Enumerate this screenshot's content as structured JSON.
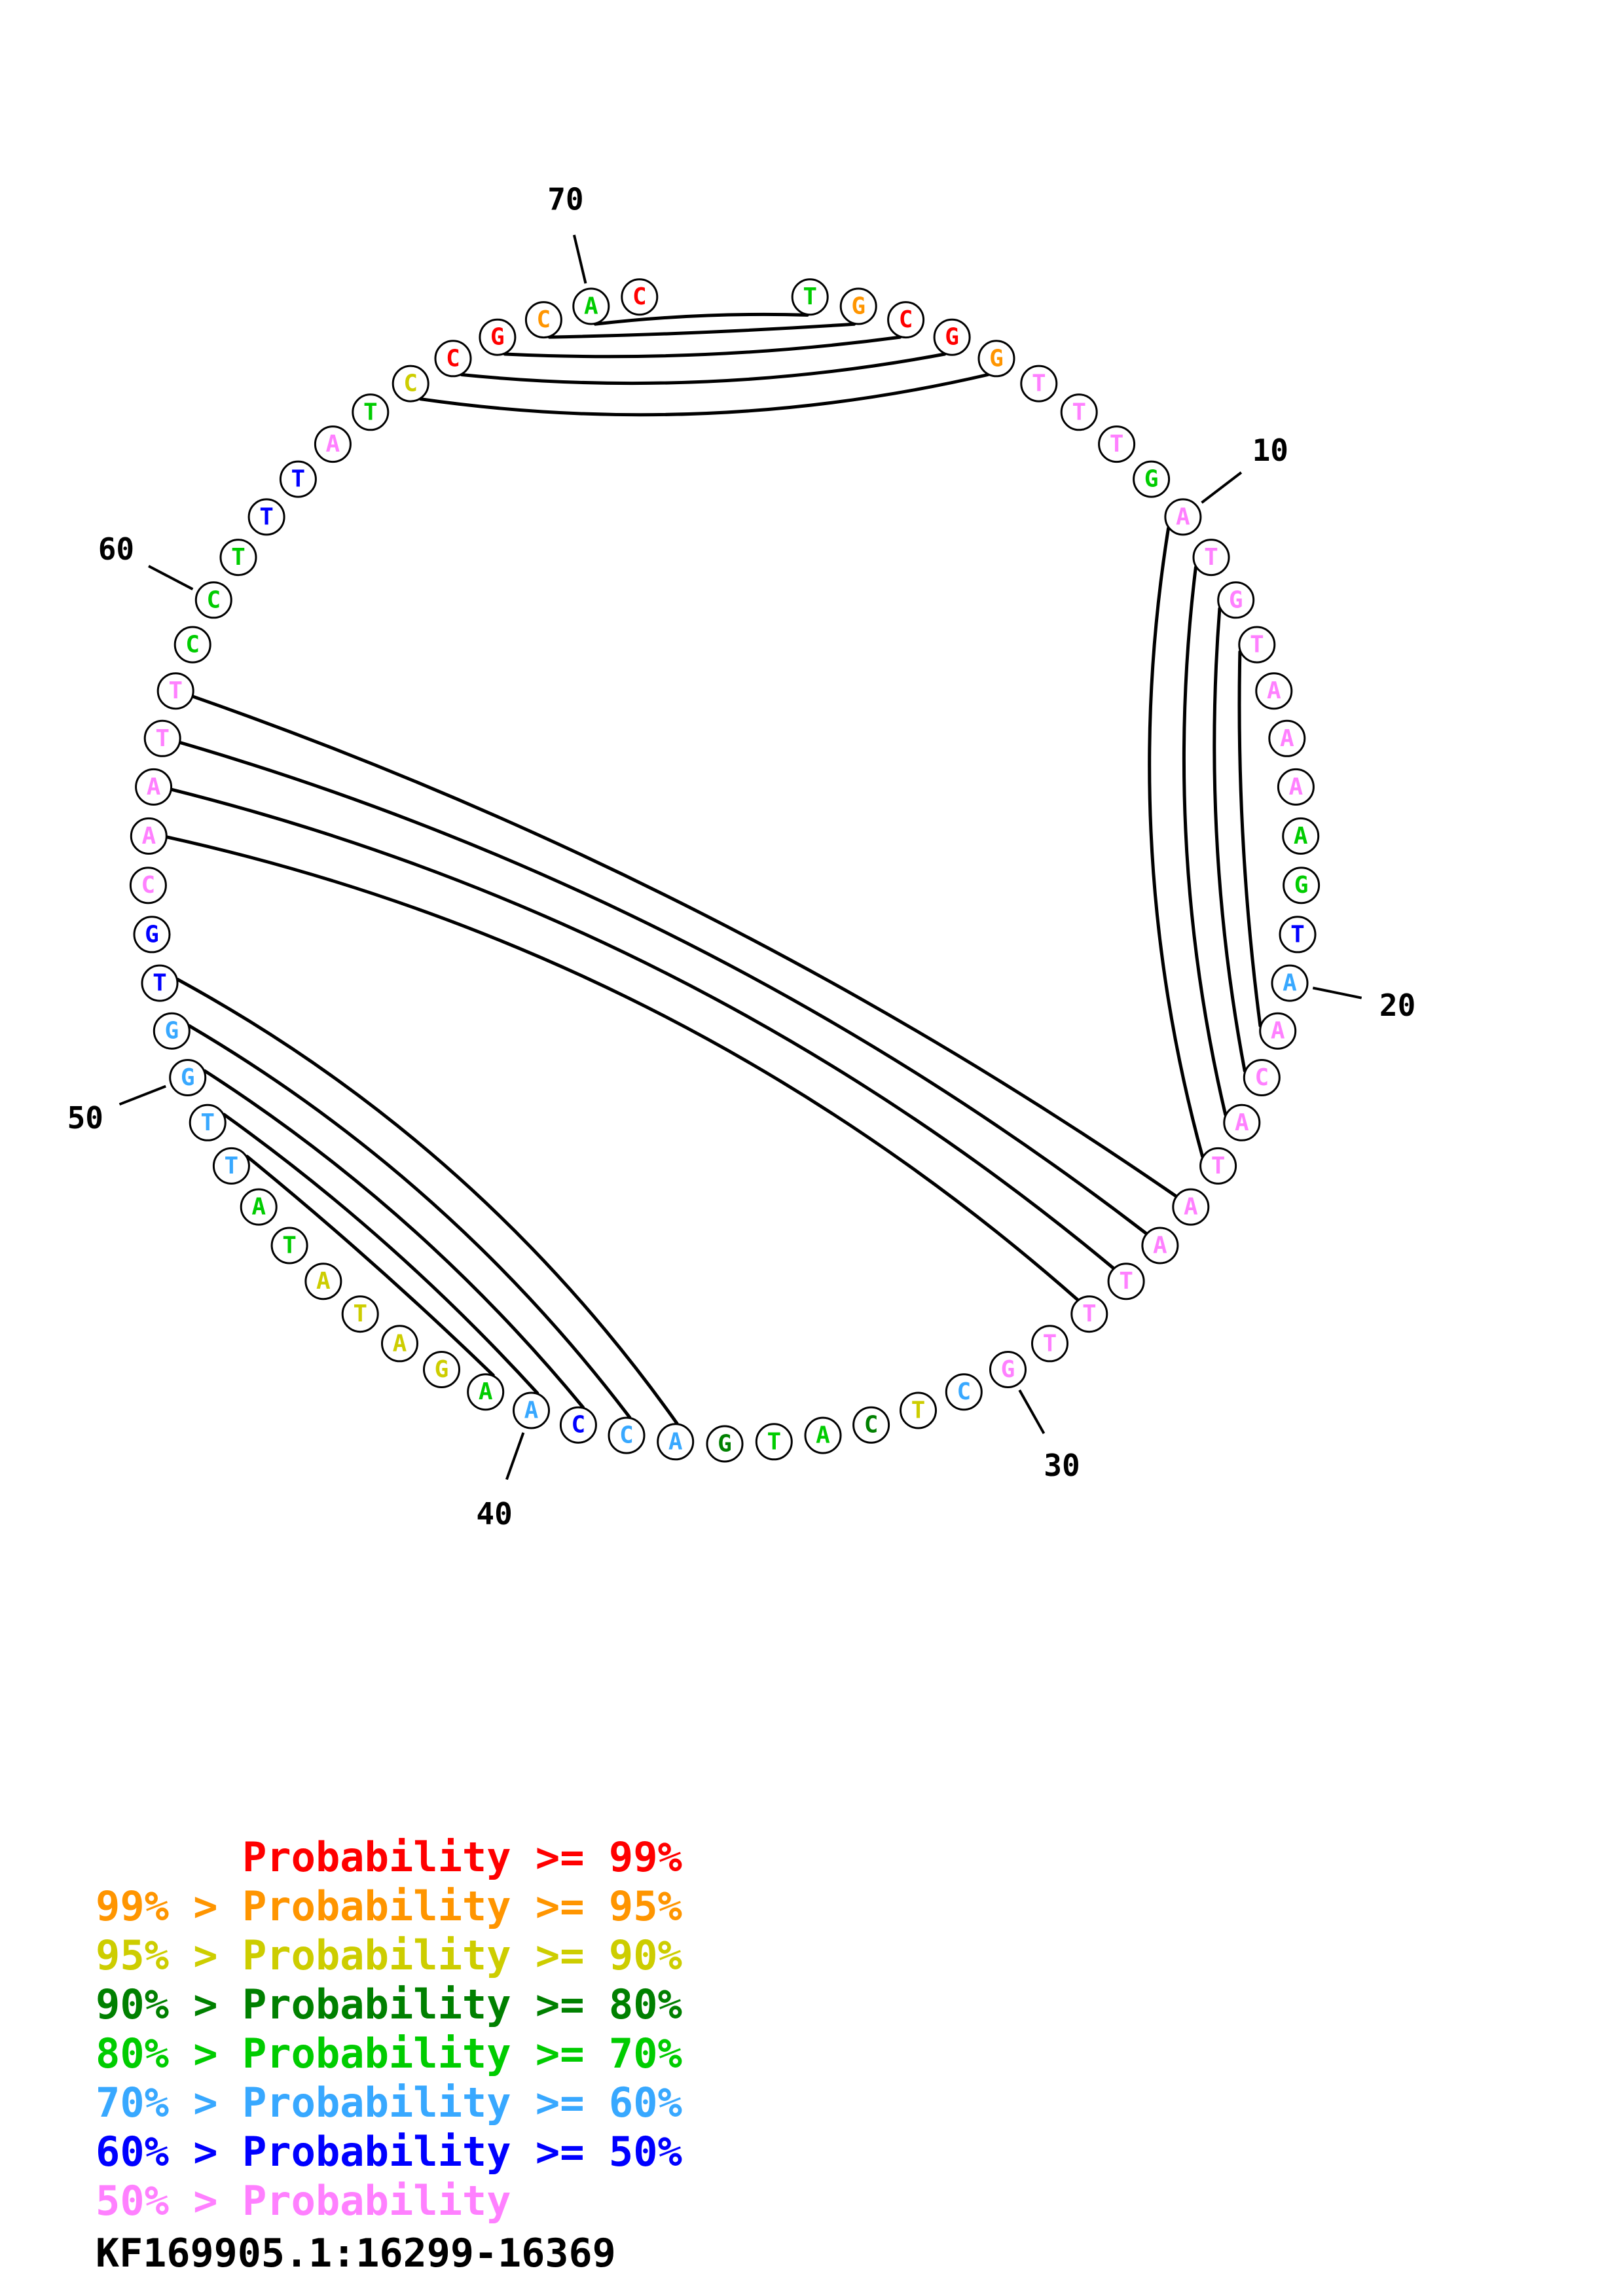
{
  "accession": "KF169905.1:16299-16369",
  "bin_colors": {
    "p99": "#ff0000",
    "p95": "#ff9500",
    "p90": "#cdcd00",
    "p80": "#008000",
    "p70": "#00cc00",
    "p60": "#38a8ff",
    "p50": "#0000ff",
    "lt50": "#ff80ff"
  },
  "legend": [
    {
      "text": "      Probability >= 99%",
      "bin": "p99"
    },
    {
      "text": "99% > Probability >= 95%",
      "bin": "p95"
    },
    {
      "text": "95% > Probability >= 90%",
      "bin": "p90"
    },
    {
      "text": "90% > Probability >= 80%",
      "bin": "p80"
    },
    {
      "text": "80% > Probability >= 70%",
      "bin": "p70"
    },
    {
      "text": "70% > Probability >= 60%",
      "bin": "p60"
    },
    {
      "text": "60% > Probability >= 50%",
      "bin": "p50"
    },
    {
      "text": "50% > Probability",
      "bin": "lt50"
    }
  ],
  "chart_data": {
    "type": "circle-structure-plot",
    "description": "Nucleic acid base-pair probability circle plot; nucleotides on a circle, black arcs join paired bases, letter color encodes probability bin",
    "sequence": "TGCGGTTTGATGTAAAAGTAACATAATTTGCTCATGACCAAGATATATTGGTGCAATTCCTTTATCCGCAC",
    "colors": [
      "p70",
      "p95",
      "p99",
      "p99",
      "p95",
      "lt50",
      "lt50",
      "lt50",
      "p70",
      "lt50",
      "lt50",
      "lt50",
      "lt50",
      "lt50",
      "lt50",
      "lt50",
      "p70",
      "p70",
      "p50",
      "p60",
      "lt50",
      "lt50",
      "lt50",
      "lt50",
      "lt50",
      "lt50",
      "lt50",
      "lt50",
      "lt50",
      "lt50",
      "p60",
      "p90",
      "p80",
      "p70",
      "p70",
      "p80",
      "p60",
      "p60",
      "p50",
      "p60",
      "p70",
      "p90",
      "p90",
      "p90",
      "p90",
      "p70",
      "p70",
      "p60",
      "p60",
      "p60",
      "p60",
      "p50",
      "p50",
      "lt50",
      "lt50",
      "lt50",
      "lt50",
      "lt50",
      "p70",
      "p70",
      "p70",
      "p50",
      "p50",
      "lt50",
      "p70",
      "p90",
      "p99",
      "p99",
      "p95",
      "p70",
      "p99"
    ],
    "pairs": [
      [
        1,
        70
      ],
      [
        2,
        69
      ],
      [
        3,
        68
      ],
      [
        4,
        67
      ],
      [
        5,
        66
      ],
      [
        10,
        24
      ],
      [
        11,
        23
      ],
      [
        12,
        22
      ],
      [
        13,
        21
      ],
      [
        25,
        58
      ],
      [
        26,
        57
      ],
      [
        27,
        56
      ],
      [
        28,
        55
      ],
      [
        37,
        52
      ],
      [
        38,
        51
      ],
      [
        39,
        50
      ],
      [
        40,
        49
      ],
      [
        41,
        48
      ]
    ],
    "ticks": [
      10,
      20,
      30,
      40,
      50,
      60,
      70
    ]
  }
}
